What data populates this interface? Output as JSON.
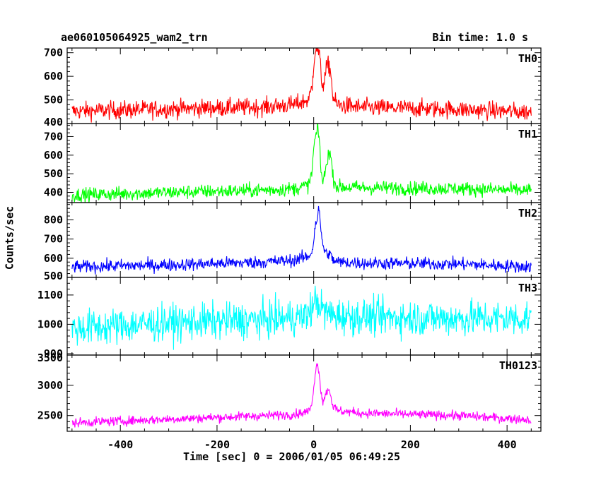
{
  "header": {
    "title": "ae060105064925_wam2_trn",
    "bin_time": "Bin time: 1.0 s"
  },
  "chart_data": {
    "type": "line",
    "xlabel": "Time [sec] 0 = 2006/01/05 06:49:25",
    "ylabel": "Counts/sec",
    "xlim": [
      -510,
      470
    ],
    "x_ticks": [
      -400,
      -200,
      0,
      200,
      400
    ],
    "x_range": [
      -500,
      450
    ],
    "bin_time_s": 1.0,
    "panels": [
      {
        "name": "TH0",
        "color": "#ff0000",
        "ylim": [
          400,
          720
        ],
        "yticks": [
          400,
          500,
          600,
          700
        ],
        "profile": [
          [
            -500,
            452
          ],
          [
            -300,
            462
          ],
          [
            -100,
            470
          ],
          [
            -40,
            480
          ],
          [
            -10,
            500
          ],
          [
            -3,
            560
          ],
          [
            0,
            660
          ],
          [
            4,
            720
          ],
          [
            8,
            715
          ],
          [
            12,
            690
          ],
          [
            15,
            610
          ],
          [
            18,
            560
          ],
          [
            22,
            580
          ],
          [
            27,
            640
          ],
          [
            31,
            650
          ],
          [
            35,
            620
          ],
          [
            40,
            510
          ],
          [
            48,
            480
          ],
          [
            100,
            468
          ],
          [
            300,
            460
          ],
          [
            450,
            448
          ]
        ],
        "noise": 32
      },
      {
        "name": "TH1",
        "color": "#00ff00",
        "ylim": [
          345,
          770
        ],
        "yticks": [
          400,
          500,
          600,
          700
        ],
        "profile": [
          [
            -500,
            385
          ],
          [
            -300,
            400
          ],
          [
            -100,
            412
          ],
          [
            -40,
            420
          ],
          [
            -10,
            440
          ],
          [
            -3,
            520
          ],
          [
            0,
            640
          ],
          [
            4,
            700
          ],
          [
            8,
            740
          ],
          [
            12,
            680
          ],
          [
            15,
            520
          ],
          [
            18,
            460
          ],
          [
            22,
            480
          ],
          [
            27,
            560
          ],
          [
            31,
            620
          ],
          [
            35,
            600
          ],
          [
            40,
            480
          ],
          [
            48,
            430
          ],
          [
            100,
            425
          ],
          [
            300,
            420
          ],
          [
            450,
            410
          ]
        ],
        "noise": 32
      },
      {
        "name": "TH2",
        "color": "#0000ff",
        "ylim": [
          500,
          890
        ],
        "yticks": [
          500,
          600,
          700,
          800
        ],
        "profile": [
          [
            -500,
            555
          ],
          [
            -300,
            565
          ],
          [
            -100,
            580
          ],
          [
            -40,
            590
          ],
          [
            -10,
            610
          ],
          [
            -3,
            640
          ],
          [
            0,
            700
          ],
          [
            4,
            780
          ],
          [
            8,
            820
          ],
          [
            11,
            860
          ],
          [
            14,
            760
          ],
          [
            18,
            690
          ],
          [
            22,
            640
          ],
          [
            27,
            620
          ],
          [
            31,
            630
          ],
          [
            40,
            590
          ],
          [
            50,
            580
          ],
          [
            100,
            575
          ],
          [
            300,
            570
          ],
          [
            450,
            555
          ]
        ],
        "noise": 28
      },
      {
        "name": "TH3",
        "color": "#00ffff",
        "ylim": [
          895,
          1160
        ],
        "yticks": [
          900,
          1000,
          1100
        ],
        "profile": [
          [
            -500,
            985
          ],
          [
            -300,
            1005
          ],
          [
            -100,
            1015
          ],
          [
            -20,
            1025
          ],
          [
            0,
            1060
          ],
          [
            5,
            1090
          ],
          [
            10,
            1070
          ],
          [
            20,
            1045
          ],
          [
            40,
            1030
          ],
          [
            100,
            1025
          ],
          [
            300,
            1020
          ],
          [
            450,
            1020
          ]
        ],
        "noise": 52
      },
      {
        "name": "TH0123",
        "color": "#ff00ff",
        "ylim": [
          2240,
          3500
        ],
        "yticks": [
          2500,
          3000,
          3500
        ],
        "profile": [
          [
            -500,
            2380
          ],
          [
            -300,
            2440
          ],
          [
            -100,
            2500
          ],
          [
            -40,
            2520
          ],
          [
            -10,
            2570
          ],
          [
            -3,
            2700
          ],
          [
            0,
            3000
          ],
          [
            4,
            3250
          ],
          [
            8,
            3350
          ],
          [
            11,
            3250
          ],
          [
            15,
            2900
          ],
          [
            18,
            2750
          ],
          [
            22,
            2780
          ],
          [
            27,
            2900
          ],
          [
            31,
            2950
          ],
          [
            35,
            2850
          ],
          [
            40,
            2650
          ],
          [
            50,
            2580
          ],
          [
            100,
            2540
          ],
          [
            300,
            2500
          ],
          [
            450,
            2430
          ]
        ],
        "noise": 65
      }
    ]
  }
}
